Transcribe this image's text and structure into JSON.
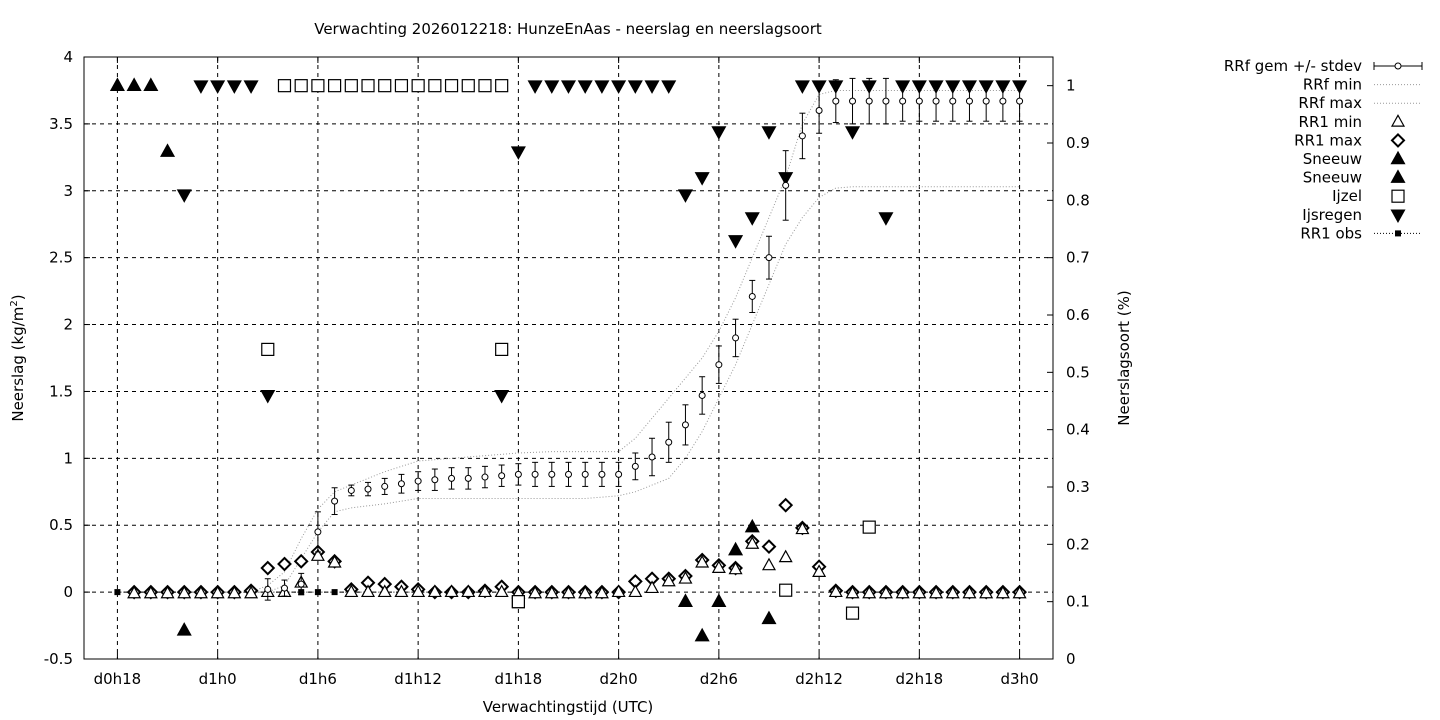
{
  "chart_data": {
    "type": "line",
    "title": "Verwachting 2026012218: HunzeEnAas - neerslag en neerslagsoort",
    "xlabel": "Verwachtingstijd (UTC)",
    "ylabel": "Neerslag (kg/m",
    "ylabel_sup": "2",
    "ylabel_end": ")",
    "y2label": "Neerslagsoort (%)",
    "xlim": [
      -2,
      56
    ],
    "ylim": [
      -0.5,
      4
    ],
    "y2lim": [
      0,
      1.05
    ],
    "x_ticks": [
      {
        "x": 0,
        "label": "d0h18"
      },
      {
        "x": 6,
        "label": "d1h0"
      },
      {
        "x": 12,
        "label": "d1h6"
      },
      {
        "x": 18,
        "label": "d1h12"
      },
      {
        "x": 24,
        "label": "d1h18"
      },
      {
        "x": 30,
        "label": "d2h0"
      },
      {
        "x": 36,
        "label": "d2h6"
      },
      {
        "x": 42,
        "label": "d2h12"
      },
      {
        "x": 48,
        "label": "d2h18"
      },
      {
        "x": 54,
        "label": "d3h0"
      }
    ],
    "y_ticks": [
      {
        "v": -0.5,
        "label": "-0.5"
      },
      {
        "v": 0,
        "label": "0"
      },
      {
        "v": 0.5,
        "label": "0.5"
      },
      {
        "v": 1,
        "label": "1"
      },
      {
        "v": 1.5,
        "label": "1.5"
      },
      {
        "v": 2,
        "label": "2"
      },
      {
        "v": 2.5,
        "label": "2.5"
      },
      {
        "v": 3,
        "label": "3"
      },
      {
        "v": 3.5,
        "label": "3.5"
      },
      {
        "v": 4,
        "label": "4"
      }
    ],
    "y2_ticks": [
      {
        "v": 0,
        "label": "0"
      },
      {
        "v": 0.1,
        "label": "0.1"
      },
      {
        "v": 0.2,
        "label": "0.2"
      },
      {
        "v": 0.3,
        "label": "0.3"
      },
      {
        "v": 0.4,
        "label": "0.4"
      },
      {
        "v": 0.5,
        "label": "0.5"
      },
      {
        "v": 0.6,
        "label": "0.6"
      },
      {
        "v": 0.7,
        "label": "0.7"
      },
      {
        "v": 0.8,
        "label": "0.8"
      },
      {
        "v": 0.9,
        "label": "0.9"
      },
      {
        "v": 1,
        "label": "1"
      }
    ],
    "grid": true,
    "legend_position": "outside-top-right",
    "series": [
      {
        "name": "RRf gem +/- stdev",
        "style": "errorbar-open-circle",
        "x": [
          9,
          10,
          11,
          12,
          13,
          14,
          15,
          16,
          17,
          18,
          19,
          20,
          21,
          22,
          23,
          24,
          25,
          26,
          27,
          28,
          29,
          30,
          31,
          32,
          33,
          34,
          35,
          36,
          37,
          38,
          39,
          40,
          41,
          42,
          43,
          44,
          45,
          46,
          47,
          48,
          49,
          50,
          51,
          52,
          53,
          54
        ],
        "y": [
          0.02,
          0.03,
          0.06,
          0.45,
          0.68,
          0.76,
          0.77,
          0.79,
          0.81,
          0.83,
          0.84,
          0.85,
          0.85,
          0.86,
          0.87,
          0.88,
          0.88,
          0.88,
          0.88,
          0.88,
          0.88,
          0.88,
          0.94,
          1.01,
          1.12,
          1.25,
          1.47,
          1.7,
          1.9,
          2.21,
          2.5,
          3.04,
          3.41,
          3.6,
          3.67,
          3.67,
          3.67,
          3.67,
          3.67,
          3.67,
          3.67,
          3.67,
          3.67,
          3.67,
          3.67,
          3.67
        ],
        "err": [
          0.08,
          0.06,
          0.08,
          0.15,
          0.1,
          0.04,
          0.05,
          0.06,
          0.07,
          0.07,
          0.08,
          0.08,
          0.08,
          0.08,
          0.08,
          0.08,
          0.09,
          0.09,
          0.09,
          0.09,
          0.09,
          0.09,
          0.1,
          0.14,
          0.15,
          0.15,
          0.14,
          0.14,
          0.14,
          0.12,
          0.16,
          0.26,
          0.17,
          0.17,
          0.16,
          0.17,
          0.17,
          0.17,
          0.15,
          0.15,
          0.15,
          0.15,
          0.15,
          0.15,
          0.15,
          0.15
        ]
      },
      {
        "name": "RRf min",
        "style": "dotted-line",
        "x": [
          8,
          9,
          10,
          11,
          12,
          13,
          14,
          16,
          18,
          20,
          22,
          24,
          26,
          28,
          30,
          31,
          32,
          33,
          34,
          35,
          36,
          37,
          38,
          39,
          40,
          41,
          42,
          43,
          44,
          46,
          48,
          50,
          52,
          54
        ],
        "y": [
          0,
          0,
          0.05,
          0.25,
          0.45,
          0.6,
          0.63,
          0.66,
          0.7,
          0.7,
          0.7,
          0.7,
          0.7,
          0.7,
          0.72,
          0.75,
          0.8,
          0.85,
          1.0,
          1.2,
          1.45,
          1.7,
          2.0,
          2.3,
          2.6,
          2.8,
          2.95,
          3.02,
          3.03,
          3.03,
          3.03,
          3.03,
          3.03,
          3.03
        ]
      },
      {
        "name": "RRf max",
        "style": "dotted-line",
        "x": [
          8,
          9,
          10,
          11,
          12,
          13,
          14,
          16,
          18,
          20,
          22,
          24,
          26,
          28,
          30,
          31,
          32,
          33,
          34,
          35,
          36,
          37,
          38,
          39,
          40,
          41,
          42,
          43,
          44,
          46,
          48,
          50,
          52,
          54
        ],
        "y": [
          0,
          0.05,
          0.15,
          0.4,
          0.62,
          0.75,
          0.8,
          0.9,
          0.98,
          1.0,
          1.02,
          1.04,
          1.05,
          1.05,
          1.05,
          1.15,
          1.3,
          1.45,
          1.6,
          1.75,
          1.95,
          2.2,
          2.5,
          2.8,
          3.1,
          3.5,
          3.72,
          3.75,
          3.75,
          3.75,
          3.75,
          3.75,
          3.75,
          3.75
        ]
      },
      {
        "name": "RR1 min",
        "style": "open-triangle-up",
        "x": [
          1,
          2,
          3,
          4,
          5,
          6,
          7,
          8,
          9,
          10,
          11,
          12,
          13,
          14,
          15,
          16,
          17,
          18,
          19,
          20,
          21,
          22,
          23,
          24,
          25,
          26,
          27,
          28,
          29,
          30,
          31,
          32,
          33,
          34,
          35,
          36,
          37,
          38,
          39,
          40,
          41,
          42,
          43,
          44,
          45,
          46,
          47,
          48,
          49,
          50,
          51,
          52,
          53,
          54
        ],
        "y": [
          -0.01,
          -0.01,
          -0.01,
          -0.01,
          -0.01,
          -0.01,
          -0.01,
          -0.01,
          0.0,
          0.0,
          0.07,
          0.27,
          0.22,
          0.0,
          0.0,
          0.0,
          0.0,
          0.0,
          0.0,
          0.0,
          0.0,
          0.0,
          0.0,
          -0.01,
          -0.01,
          -0.01,
          -0.01,
          -0.01,
          -0.01,
          0.0,
          0.0,
          0.03,
          0.08,
          0.1,
          0.22,
          0.18,
          0.17,
          0.36,
          0.2,
          0.26,
          0.47,
          0.15,
          0.0,
          -0.01,
          -0.01,
          -0.01,
          -0.01,
          -0.01,
          -0.01,
          -0.01,
          -0.01,
          -0.01,
          -0.01,
          -0.01
        ]
      },
      {
        "name": "RR1 max",
        "style": "open-diamond",
        "x": [
          1,
          2,
          3,
          4,
          5,
          6,
          7,
          8,
          9,
          10,
          11,
          12,
          13,
          14,
          15,
          16,
          17,
          18,
          19,
          20,
          21,
          22,
          23,
          24,
          25,
          26,
          27,
          28,
          29,
          30,
          31,
          32,
          33,
          34,
          35,
          36,
          37,
          38,
          39,
          40,
          41,
          42,
          43,
          44,
          45,
          46,
          47,
          48,
          49,
          50,
          51,
          52,
          53,
          54
        ],
        "y": [
          0.0,
          0.0,
          0.0,
          0.0,
          0.0,
          0.0,
          0.0,
          0.01,
          0.18,
          0.21,
          0.23,
          0.3,
          0.23,
          0.02,
          0.07,
          0.06,
          0.04,
          0.02,
          0.0,
          0.0,
          0.0,
          0.01,
          0.04,
          0.0,
          0.0,
          0.0,
          0.0,
          0.0,
          0.0,
          0.0,
          0.08,
          0.1,
          0.1,
          0.12,
          0.24,
          0.2,
          0.18,
          0.38,
          0.34,
          0.65,
          0.48,
          0.19,
          0.01,
          0.0,
          0.0,
          0.0,
          0.0,
          0.0,
          0.0,
          0.0,
          0.0,
          0.0,
          0.0,
          0.0
        ]
      },
      {
        "name": "Sneeuw",
        "style": "filled-triangle-up",
        "axis": "y2",
        "x": [
          0,
          1,
          2,
          3,
          4,
          34,
          35,
          36,
          37,
          38,
          39
        ],
        "y": [
          1.0,
          1.0,
          1.0,
          0.885,
          0.05,
          0.1,
          0.04,
          0.1,
          0.19,
          0.23,
          0.07
        ]
      },
      {
        "name": "Sneeuw",
        "style": "filled-triangle-up",
        "axis": "y2",
        "x": [],
        "y": []
      },
      {
        "name": "Ijzel",
        "style": "open-square",
        "axis": "y2",
        "x": [
          9,
          10,
          11,
          12,
          13,
          14,
          15,
          16,
          17,
          18,
          19,
          20,
          21,
          22,
          23,
          24,
          23,
          24,
          40,
          44,
          45
        ],
        "y": [
          0.54,
          1.0,
          1.0,
          1.0,
          1.0,
          1.0,
          1.0,
          1.0,
          1.0,
          1.0,
          1.0,
          1.0,
          1.0,
          1.0,
          1.0,
          0.1,
          0.54,
          0.1,
          0.12,
          0.08,
          0.23
        ]
      },
      {
        "name": "Ijsregen",
        "style": "filled-triangle-down",
        "axis": "y2",
        "x": [
          4,
          5,
          6,
          7,
          8,
          9,
          23,
          24,
          25,
          26,
          27,
          28,
          29,
          30,
          31,
          32,
          33,
          34,
          35,
          36,
          37,
          38,
          39,
          40,
          41,
          42,
          43,
          44,
          45,
          46,
          47,
          48,
          49,
          50,
          51,
          52,
          53,
          54
        ],
        "y": [
          0.81,
          1.0,
          1.0,
          1.0,
          1.0,
          0.46,
          0.46,
          0.885,
          1.0,
          1.0,
          1.0,
          1.0,
          1.0,
          1.0,
          1.0,
          1.0,
          1.0,
          0.81,
          0.84,
          0.92,
          0.73,
          0.77,
          0.92,
          0.84,
          1.0,
          1.0,
          1.0,
          0.92,
          1.0,
          0.77,
          1.0,
          1.0,
          1.0,
          1.0,
          1.0,
          1.0,
          1.0,
          1.0
        ]
      },
      {
        "name": "RR1 obs",
        "style": "dotted-line-filled-square",
        "x": [
          0,
          1,
          2,
          3,
          4,
          5,
          6,
          7,
          8,
          9,
          10,
          11,
          12,
          13,
          14,
          15,
          16,
          17,
          18,
          19,
          20,
          21,
          22,
          23,
          24
        ],
        "y": [
          0,
          0,
          0,
          0,
          0,
          0,
          0,
          0,
          0,
          0,
          0,
          0,
          0,
          0,
          0,
          0,
          0,
          0,
          0,
          0,
          0,
          0,
          0,
          0,
          0
        ]
      }
    ]
  }
}
